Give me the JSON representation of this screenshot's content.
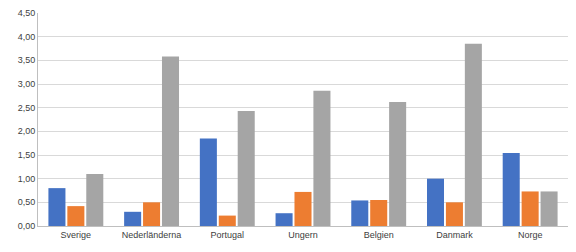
{
  "chart_data": {
    "type": "bar",
    "categories": [
      "Sverige",
      "Nederländerna",
      "Portugal",
      "Ungern",
      "Belgien",
      "Danmark",
      "Norge"
    ],
    "series": [
      {
        "color": "#4472c4",
        "values": [
          0.8,
          0.3,
          1.85,
          0.27,
          0.54,
          1.0,
          1.54
        ]
      },
      {
        "color": "#ed7d31",
        "values": [
          0.42,
          0.5,
          0.22,
          0.72,
          0.55,
          0.5,
          0.73
        ]
      },
      {
        "color": "#a5a5a5",
        "values": [
          1.1,
          3.58,
          2.43,
          2.86,
          2.62,
          3.85,
          0.73
        ]
      }
    ],
    "ylim": [
      0,
      4.5
    ],
    "yticks": [
      {
        "value": 0,
        "label": "0,00"
      },
      {
        "value": 0.5,
        "label": "0,50"
      },
      {
        "value": 1,
        "label": "1,00"
      },
      {
        "value": 1.5,
        "label": "1,50"
      },
      {
        "value": 2,
        "label": "2,00"
      },
      {
        "value": 2.5,
        "label": "2,50"
      },
      {
        "value": 3,
        "label": "3,00"
      },
      {
        "value": 3.5,
        "label": "3,50"
      },
      {
        "value": 4,
        "label": "4,00"
      },
      {
        "value": 4.5,
        "label": "4,50"
      }
    ],
    "grid": true
  }
}
